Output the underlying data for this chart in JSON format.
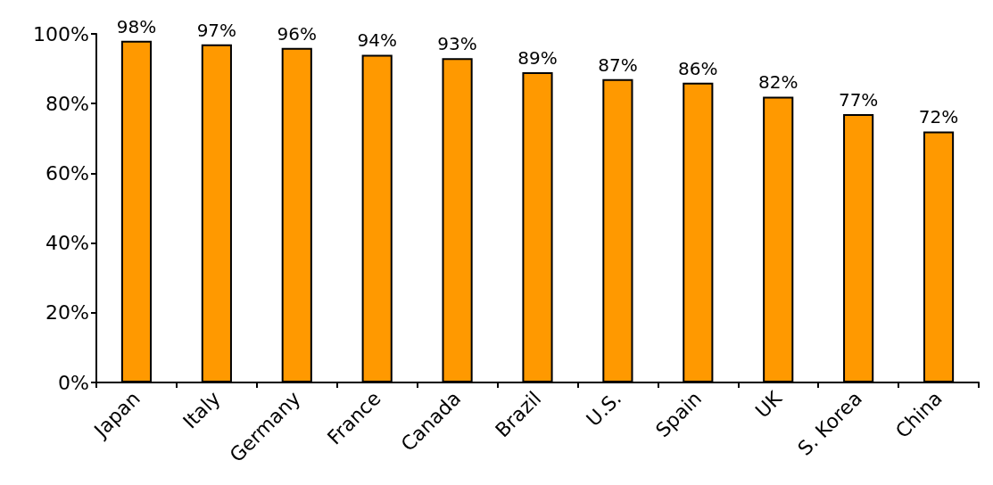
{
  "chart_data": {
    "type": "bar",
    "categories": [
      "Japan",
      "Italy",
      "Germany",
      "France",
      "Canada",
      "Brazil",
      "U.S.",
      "Spain",
      "UK",
      "S. Korea",
      "China"
    ],
    "values": [
      98,
      97,
      96,
      94,
      93,
      89,
      87,
      86,
      82,
      77,
      72
    ],
    "value_labels": [
      "98%",
      "97%",
      "96%",
      "94%",
      "93%",
      "89%",
      "87%",
      "86%",
      "82%",
      "77%",
      "72%"
    ],
    "color": "#ff9900",
    "ylim": [
      0,
      100
    ],
    "yticks": [
      {
        "value": 0,
        "label": "0%"
      },
      {
        "value": 20,
        "label": "20%"
      },
      {
        "value": 40,
        "label": "40%"
      },
      {
        "value": 60,
        "label": "60%"
      },
      {
        "value": 80,
        "label": "80%"
      },
      {
        "value": 100,
        "label": "100%"
      }
    ],
    "grid": false
  }
}
